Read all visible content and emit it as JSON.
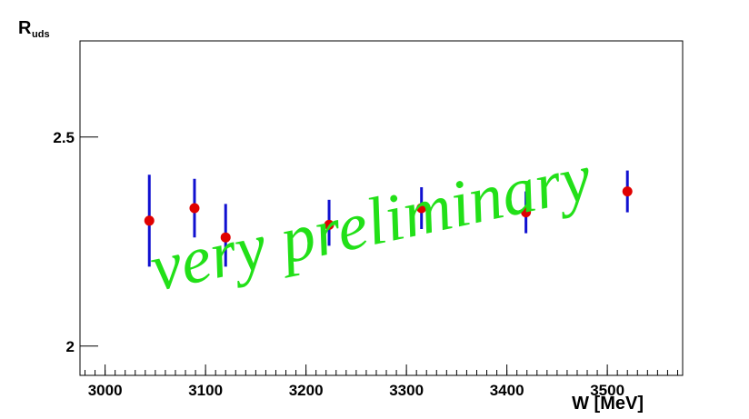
{
  "chart_data": {
    "type": "scatter",
    "xlabel": "W [MeV]",
    "ylabel_main": "R",
    "ylabel_sub": "uds",
    "xlim": [
      2975,
      3575
    ],
    "ylim": [
      1.93,
      2.73
    ],
    "x_ticks_major": [
      3000,
      3100,
      3200,
      3300,
      3400,
      3500
    ],
    "x_ticks_major_labels": [
      "3000",
      "3100",
      "3200",
      "3300",
      "3400",
      "3500"
    ],
    "x_tick_minor_step": 10,
    "y_ticks_major": [
      2,
      2.5
    ],
    "y_ticks_major_labels": [
      "2",
      "2.5"
    ],
    "grid": false,
    "annotation": "very preliminary",
    "marker_color": "#e00000",
    "errorbar_color": "#1010d0",
    "annotation_color": "#22e018",
    "points": [
      {
        "x": 3044,
        "y": 2.3,
        "yerr_low": 0.11,
        "yerr_high": 0.11
      },
      {
        "x": 3089,
        "y": 2.33,
        "yerr_low": 0.07,
        "yerr_high": 0.07
      },
      {
        "x": 3120,
        "y": 2.26,
        "yerr_low": 0.07,
        "yerr_high": 0.08
      },
      {
        "x": 3223,
        "y": 2.29,
        "yerr_low": 0.05,
        "yerr_high": 0.06
      },
      {
        "x": 3315,
        "y": 2.33,
        "yerr_low": 0.05,
        "yerr_high": 0.05
      },
      {
        "x": 3419,
        "y": 2.32,
        "yerr_low": 0.05,
        "yerr_high": 0.05
      },
      {
        "x": 3520,
        "y": 2.37,
        "yerr_low": 0.05,
        "yerr_high": 0.05
      }
    ]
  }
}
